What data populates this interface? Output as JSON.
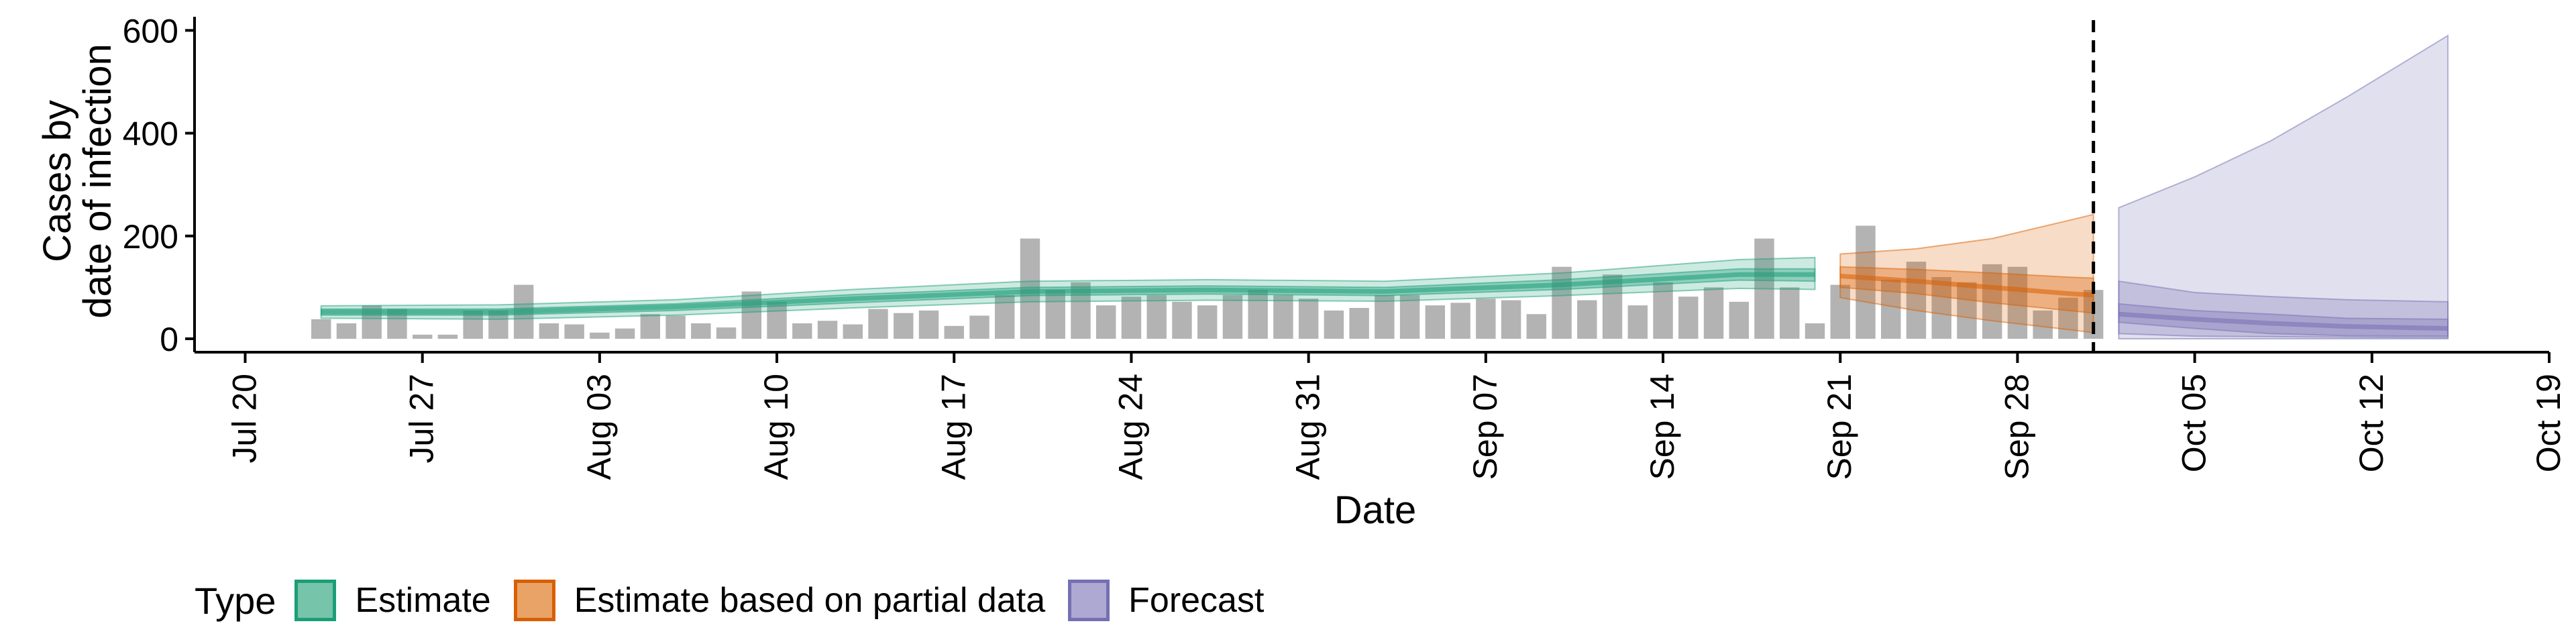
{
  "chart_data": {
    "type": "bar+ribbon",
    "xlabel": "Date",
    "ylabel_lines": [
      "Cases by",
      "date of infection"
    ],
    "x_ticks": [
      "Jul 20",
      "Jul 27",
      "Aug 03",
      "Aug 10",
      "Aug 17",
      "Aug 24",
      "Aug 31",
      "Sep 07",
      "Sep 14",
      "Sep 21",
      "Sep 28",
      "Oct 05",
      "Oct 12",
      "Oct 19"
    ],
    "x_tick_dates": [
      "2020-07-20",
      "2020-07-27",
      "2020-08-03",
      "2020-08-10",
      "2020-08-17",
      "2020-08-24",
      "2020-08-31",
      "2020-09-07",
      "2020-09-14",
      "2020-09-21",
      "2020-09-28",
      "2020-10-05",
      "2020-10-12",
      "2020-10-19"
    ],
    "y_ticks": [
      0,
      200,
      400,
      600
    ],
    "ylim": [
      0,
      620
    ],
    "xlim": [
      "2020-07-18",
      "2020-10-19"
    ],
    "vline_date": "2020-10-01",
    "bars": {
      "dates": [
        "2020-07-23",
        "2020-07-24",
        "2020-07-25",
        "2020-07-26",
        "2020-07-27",
        "2020-07-28",
        "2020-07-29",
        "2020-07-30",
        "2020-07-31",
        "2020-08-01",
        "2020-08-02",
        "2020-08-03",
        "2020-08-04",
        "2020-08-05",
        "2020-08-06",
        "2020-08-07",
        "2020-08-08",
        "2020-08-09",
        "2020-08-10",
        "2020-08-11",
        "2020-08-12",
        "2020-08-13",
        "2020-08-14",
        "2020-08-15",
        "2020-08-16",
        "2020-08-17",
        "2020-08-18",
        "2020-08-19",
        "2020-08-20",
        "2020-08-21",
        "2020-08-22",
        "2020-08-23",
        "2020-08-24",
        "2020-08-25",
        "2020-08-26",
        "2020-08-27",
        "2020-08-28",
        "2020-08-29",
        "2020-08-30",
        "2020-08-31",
        "2020-09-01",
        "2020-09-02",
        "2020-09-03",
        "2020-09-04",
        "2020-09-05",
        "2020-09-06",
        "2020-09-07",
        "2020-09-08",
        "2020-09-09",
        "2020-09-10",
        "2020-09-11",
        "2020-09-12",
        "2020-09-13",
        "2020-09-14",
        "2020-09-15",
        "2020-09-16",
        "2020-09-17",
        "2020-09-18",
        "2020-09-19",
        "2020-09-20",
        "2020-09-21",
        "2020-09-22",
        "2020-09-23",
        "2020-09-24",
        "2020-09-25",
        "2020-09-26",
        "2020-09-27",
        "2020-09-28",
        "2020-09-29",
        "2020-09-30",
        "2020-10-01"
      ],
      "values": [
        38,
        30,
        65,
        58,
        8,
        8,
        55,
        55,
        105,
        30,
        28,
        12,
        20,
        48,
        45,
        30,
        22,
        92,
        72,
        30,
        35,
        28,
        58,
        50,
        55,
        25,
        45,
        85,
        195,
        95,
        110,
        65,
        82,
        85,
        72,
        65,
        85,
        95,
        85,
        78,
        55,
        60,
        85,
        85,
        65,
        70,
        78,
        75,
        48,
        140,
        75,
        125,
        65,
        110,
        82,
        100,
        72,
        195,
        100,
        30,
        105,
        220,
        115,
        150,
        120,
        110,
        145,
        140,
        55,
        80,
        95
      ]
    },
    "series": [
      {
        "name": "Estimate",
        "color": "#1B9E77",
        "dates": [
          "2020-07-23",
          "2020-07-30",
          "2020-08-06",
          "2020-08-13",
          "2020-08-20",
          "2020-08-27",
          "2020-09-03",
          "2020-09-10",
          "2020-09-17",
          "2020-09-20"
        ],
        "median": [
          52,
          52,
          62,
          78,
          92,
          95,
          92,
          105,
          125,
          125
        ],
        "inner": [
          [
            46,
            58
          ],
          [
            46,
            58
          ],
          [
            55,
            68
          ],
          [
            70,
            86
          ],
          [
            84,
            100
          ],
          [
            87,
            103
          ],
          [
            84,
            100
          ],
          [
            96,
            115
          ],
          [
            114,
            136
          ],
          [
            112,
            136
          ]
        ],
        "outer": [
          [
            40,
            64
          ],
          [
            38,
            66
          ],
          [
            46,
            76
          ],
          [
            60,
            96
          ],
          [
            72,
            112
          ],
          [
            75,
            115
          ],
          [
            73,
            112
          ],
          [
            84,
            128
          ],
          [
            98,
            154
          ],
          [
            96,
            158
          ]
        ]
      },
      {
        "name": "Estimate based on partial data",
        "color": "#D95F02",
        "dates": [
          "2020-09-21",
          "2020-09-24",
          "2020-09-27",
          "2020-09-30",
          "2020-10-01"
        ],
        "median": [
          122,
          112,
          100,
          88,
          85
        ],
        "inner": [
          [
            100,
            140
          ],
          [
            88,
            135
          ],
          [
            70,
            128
          ],
          [
            55,
            120
          ],
          [
            50,
            118
          ]
        ],
        "outer": [
          [
            80,
            165
          ],
          [
            55,
            175
          ],
          [
            35,
            195
          ],
          [
            18,
            230
          ],
          [
            12,
            242
          ]
        ]
      },
      {
        "name": "Forecast",
        "color": "#7570B3",
        "dates": [
          "2020-10-02",
          "2020-10-05",
          "2020-10-08",
          "2020-10-11",
          "2020-10-15"
        ],
        "median": [
          48,
          38,
          30,
          24,
          20
        ],
        "inner": [
          [
            32,
            68
          ],
          [
            20,
            55
          ],
          [
            10,
            48
          ],
          [
            6,
            40
          ],
          [
            5,
            38
          ]
        ],
        "mid": [
          [
            10,
            112
          ],
          [
            5,
            90
          ],
          [
            4,
            82
          ],
          [
            3,
            76
          ],
          [
            2,
            72
          ]
        ],
        "outer": [
          [
            0,
            255
          ],
          [
            0,
            315
          ],
          [
            0,
            385
          ],
          [
            0,
            470
          ],
          [
            0,
            590
          ]
        ]
      }
    ],
    "legend": {
      "title": "Type",
      "entries": [
        "Estimate",
        "Estimate based on partial data",
        "Forecast"
      ],
      "placement": "bottom"
    }
  }
}
